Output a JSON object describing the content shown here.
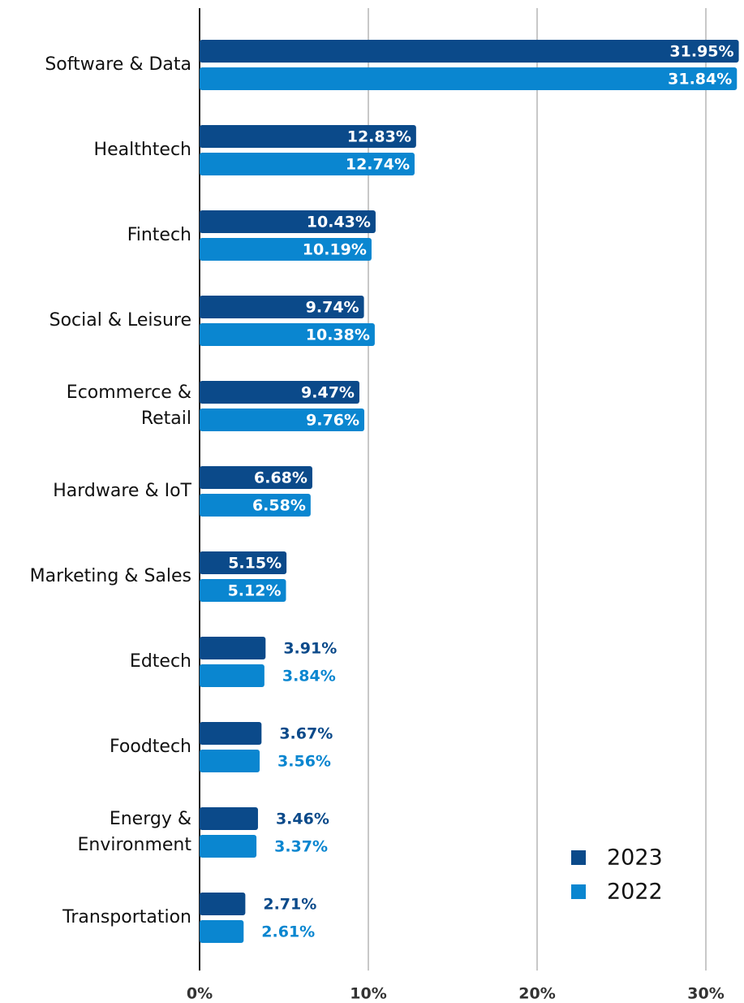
{
  "chart_data": {
    "type": "hbar",
    "categories": [
      "Software & Data",
      "Healthtech",
      "Fintech",
      "Social & Leisure",
      "Ecommerce &\nRetail",
      "Hardware & IoT",
      "Marketing & Sales",
      "Edtech",
      "Foodtech",
      "Energy &\nEnvironment",
      "Transportation"
    ],
    "series": [
      {
        "name": "2023",
        "color": "#0b4a8a",
        "values": [
          31.95,
          12.83,
          10.43,
          9.74,
          9.47,
          6.68,
          5.15,
          3.91,
          3.67,
          3.46,
          2.71
        ],
        "value_labels": [
          "31.95%",
          "12.83%",
          "10.43%",
          "9.74%",
          "9.47%",
          "6.68%",
          "5.15%",
          "3.91%",
          "3.67%",
          "3.46%",
          "2.71%"
        ]
      },
      {
        "name": "2022",
        "color": "#0a86d0",
        "values": [
          31.84,
          12.74,
          10.19,
          10.38,
          9.76,
          6.58,
          5.12,
          3.84,
          3.56,
          3.37,
          2.61
        ],
        "value_labels": [
          "31.84%",
          "12.74%",
          "10.19%",
          "10.38%",
          "9.76%",
          "6.58%",
          "5.12%",
          "3.84%",
          "3.56%",
          "3.37%",
          "2.61%"
        ]
      }
    ],
    "xlim": [
      0,
      32
    ],
    "xticks": [
      {
        "value": 0,
        "label": "0%"
      },
      {
        "value": 10,
        "label": "10%"
      },
      {
        "value": 20,
        "label": "20%"
      },
      {
        "value": 30,
        "label": "30%"
      }
    ],
    "grid": true,
    "legend": "lower right"
  }
}
